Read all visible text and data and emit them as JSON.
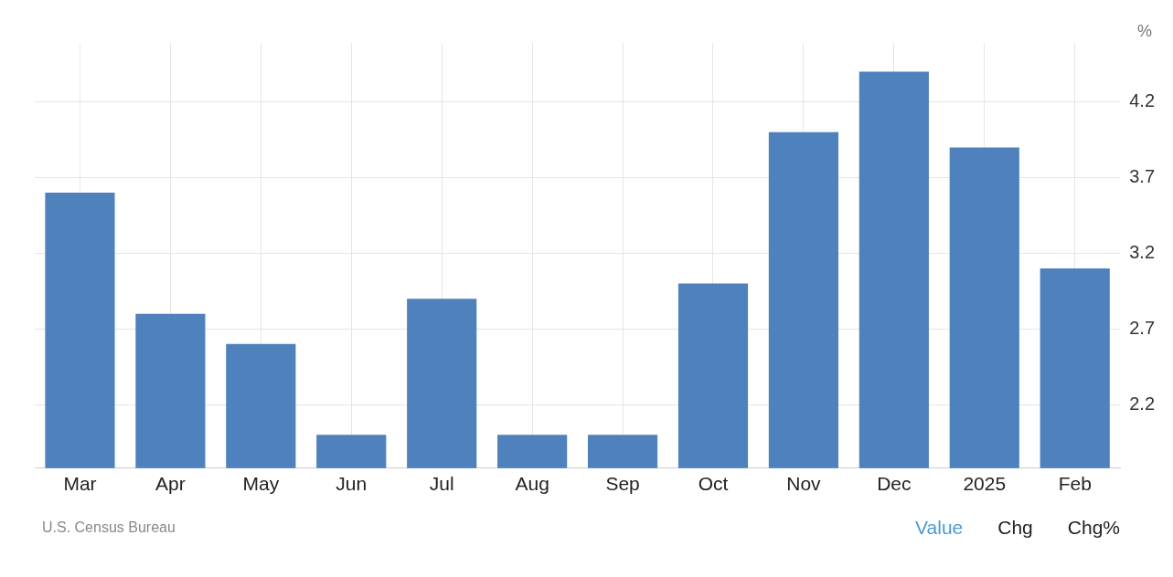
{
  "chart_data": {
    "type": "bar",
    "ylabel": "%",
    "categories": [
      "Mar",
      "Apr",
      "May",
      "Jun",
      "Jul",
      "Aug",
      "Sep",
      "Oct",
      "Nov",
      "Dec",
      "2025",
      "Feb"
    ],
    "values": [
      3.6,
      2.8,
      2.6,
      2.0,
      2.9,
      2.0,
      2.0,
      3.0,
      4.0,
      4.4,
      3.9,
      3.1
    ],
    "color": "#4f81bd",
    "ylim": [
      1.78,
      4.59
    ],
    "yticks": [
      2.2,
      2.7,
      3.2,
      3.7,
      4.2
    ],
    "grid": true,
    "annotations": [
      "U.S. Census Bureau",
      "Value",
      "Chg",
      "Chg%"
    ]
  }
}
